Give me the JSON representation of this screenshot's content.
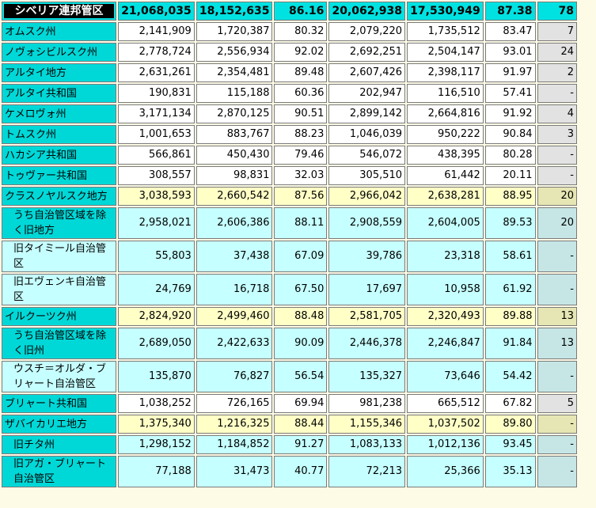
{
  "columns_count": 7,
  "header": {
    "name": "シベリア連邦管区",
    "v1": "21,068,035",
    "v2": "18,152,635",
    "v3": "86.16",
    "v4": "20,062,938",
    "v5": "17,530,949",
    "v6": "87.38",
    "rank": "78"
  },
  "rows": [
    {
      "name": "オムスク州",
      "v1": "2,141,909",
      "v2": "1,720,387",
      "v3": "80.32",
      "v4": "2,079,220",
      "v5": "1,735,512",
      "v6": "83.47",
      "rank": "7"
    },
    {
      "name": "ノヴォシビルスク州",
      "v1": "2,778,724",
      "v2": "2,556,934",
      "v3": "92.02",
      "v4": "2,692,251",
      "v5": "2,504,147",
      "v6": "93.01",
      "rank": "24"
    },
    {
      "name": "アルタイ地方",
      "v1": "2,631,261",
      "v2": "2,354,481",
      "v3": "89.48",
      "v4": "2,607,426",
      "v5": "2,398,117",
      "v6": "91.97",
      "rank": "2"
    },
    {
      "name": "アルタイ共和国",
      "v1": "190,831",
      "v2": "115,188",
      "v3": "60.36",
      "v4": "202,947",
      "v5": "116,510",
      "v6": "57.41",
      "rank": "-"
    },
    {
      "name": "ケメロヴォ州",
      "v1": "3,171,134",
      "v2": "2,870,125",
      "v3": "90.51",
      "v4": "2,899,142",
      "v5": "2,664,816",
      "v6": "91.92",
      "rank": "4"
    },
    {
      "name": "トムスク州",
      "v1": "1,001,653",
      "v2": "883,767",
      "v3": "88.23",
      "v4": "1,046,039",
      "v5": "950,222",
      "v6": "90.84",
      "rank": "3"
    },
    {
      "name": "ハカシア共和国",
      "v1": "566,861",
      "v2": "450,430",
      "v3": "79.46",
      "v4": "546,072",
      "v5": "438,395",
      "v6": "80.28",
      "rank": "-"
    },
    {
      "name": "トゥヴァー共和国",
      "v1": "308,557",
      "v2": "98,831",
      "v3": "32.03",
      "v4": "305,510",
      "v5": "61,442",
      "v6": "20.11",
      "rank": "-"
    },
    {
      "name": "クラスノヤルスク地方",
      "v1": "3,038,593",
      "v2": "2,660,542",
      "v3": "87.56",
      "v4": "2,966,042",
      "v5": "2,638,281",
      "v6": "88.95",
      "rank": "20"
    },
    {
      "name": "うち自治管区域を除く旧地方",
      "v1": "2,958,021",
      "v2": "2,606,386",
      "v3": "88.11",
      "v4": "2,908,559",
      "v5": "2,604,005",
      "v6": "89.53",
      "rank": "20"
    },
    {
      "name": "旧タイミール自治管区",
      "v1": "55,803",
      "v2": "37,438",
      "v3": "67.09",
      "v4": "39,786",
      "v5": "23,318",
      "v6": "58.61",
      "rank": "-"
    },
    {
      "name": "旧エヴェンキ自治管区",
      "v1": "24,769",
      "v2": "16,718",
      "v3": "67.50",
      "v4": "17,697",
      "v5": "10,958",
      "v6": "61.92",
      "rank": "-"
    },
    {
      "name": "イルクーツク州",
      "v1": "2,824,920",
      "v2": "2,499,460",
      "v3": "88.48",
      "v4": "2,581,705",
      "v5": "2,320,493",
      "v6": "89.88",
      "rank": "13"
    },
    {
      "name": "うち自治管区域を除く旧州",
      "v1": "2,689,050",
      "v2": "2,422,633",
      "v3": "90.09",
      "v4": "2,446,378",
      "v5": "2,246,847",
      "v6": "91.84",
      "rank": "13"
    },
    {
      "name": "ウスチ＝オルダ・ブリャート自治管区",
      "v1": "135,870",
      "v2": "76,827",
      "v3": "56.54",
      "v4": "135,327",
      "v5": "73,646",
      "v6": "54.42",
      "rank": "-"
    },
    {
      "name": "ブリャート共和国",
      "v1": "1,038,252",
      "v2": "726,165",
      "v3": "69.94",
      "v4": "981,238",
      "v5": "665,512",
      "v6": "67.82",
      "rank": "5"
    },
    {
      "name": "ザバイカリエ地方",
      "v1": "1,375,340",
      "v2": "1,216,325",
      "v3": "88.44",
      "v4": "1,155,346",
      "v5": "1,037,502",
      "v6": "89.80",
      "rank": "-"
    },
    {
      "name": "旧チタ州",
      "v1": "1,298,152",
      "v2": "1,184,852",
      "v3": "91.27",
      "v4": "1,083,133",
      "v5": "1,012,136",
      "v6": "93.45",
      "rank": "-"
    },
    {
      "name": "旧アガ・ブリャート自治管区",
      "v1": "77,188",
      "v2": "31,473",
      "v3": "40.77",
      "v4": "72,213",
      "v5": "25,366",
      "v6": "35.13",
      "rank": "-"
    }
  ]
}
